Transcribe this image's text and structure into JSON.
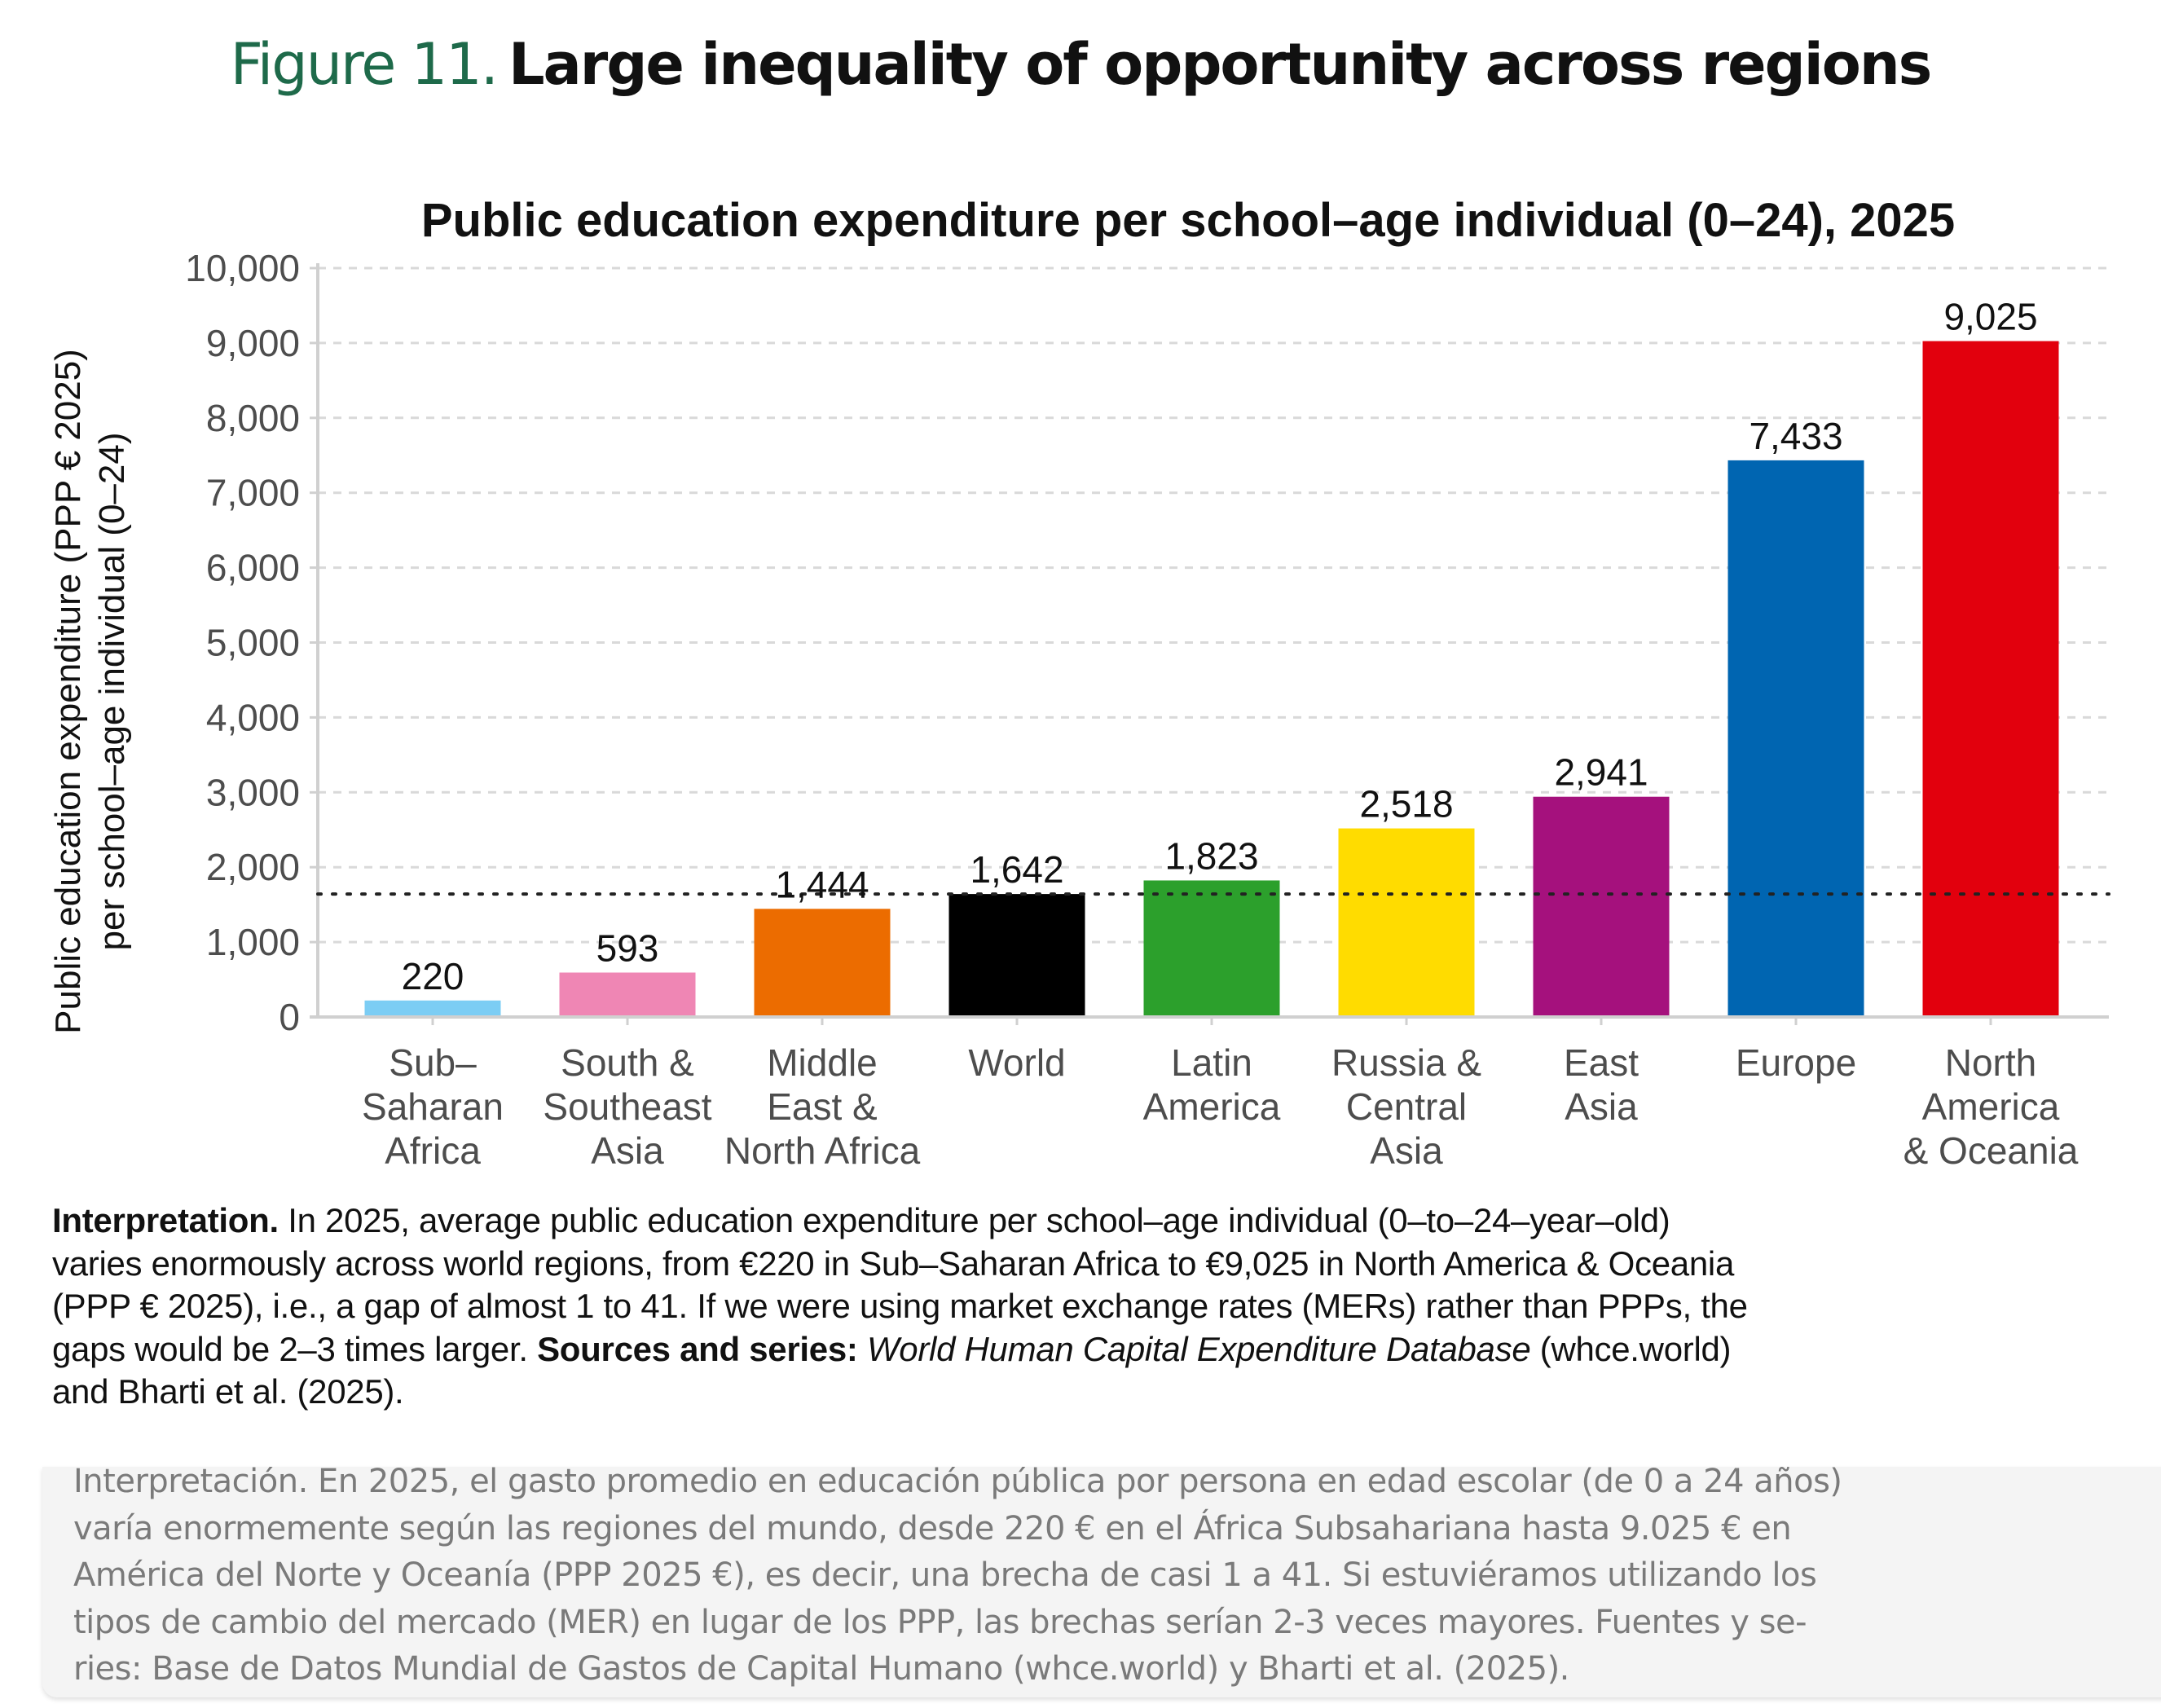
{
  "figure": {
    "number_label": "Figure 11.",
    "title": "Large inequality of opportunity across regions",
    "accent_color": "#1e6a4a"
  },
  "chart_data": {
    "type": "bar",
    "title": "Public education expenditure per school–age individual (0–24), 2025",
    "xlabel": "",
    "ylabel_lines": [
      "Public education expenditure (PPP € 2025)",
      "per school–age individual (0–24)"
    ],
    "ylim": [
      0,
      10000
    ],
    "yticks": [
      0,
      1000,
      2000,
      3000,
      4000,
      5000,
      6000,
      7000,
      8000,
      9000,
      10000
    ],
    "ytick_labels": [
      "0",
      "1,000",
      "2,000",
      "3,000",
      "4,000",
      "5,000",
      "6,000",
      "7,000",
      "8,000",
      "9,000",
      "10,000"
    ],
    "grid": "horizontal dashed",
    "reference_line": {
      "label": "World",
      "value": 1642,
      "style": "dotted"
    },
    "categories": [
      [
        "Sub–",
        "Saharan",
        "Africa"
      ],
      [
        "South &",
        "Southeast",
        "Asia"
      ],
      [
        "Middle",
        "East &",
        "North Africa"
      ],
      [
        "World"
      ],
      [
        "Latin",
        "America"
      ],
      [
        "Russia &",
        "Central",
        "Asia"
      ],
      [
        "East",
        "Asia"
      ],
      [
        "Europe"
      ],
      [
        "North",
        "America",
        "& Oceania"
      ]
    ],
    "values": [
      220,
      593,
      1444,
      1642,
      1823,
      2518,
      2941,
      7433,
      9025
    ],
    "value_labels": [
      "220",
      "593",
      "1,444",
      "1,642",
      "1,823",
      "2,518",
      "2,941",
      "7,433",
      "9,025"
    ],
    "colors": [
      "#7ccdf4",
      "#ef86b4",
      "#ec6c00",
      "#000000",
      "#2ca02c",
      "#ffdc00",
      "#a5117d",
      "#0065b1",
      "#e2000d"
    ]
  },
  "interpretation": {
    "lines": [
      [
        {
          "b": "Interpretation."
        },
        {
          "t": " In 2025, average public education expenditure per school–age individual (0–to–24–year–old)"
        }
      ],
      [
        {
          "t": "varies enormously across world regions, from €220 in Sub–Saharan Africa to €9,025 in North America & Oceania"
        }
      ],
      [
        {
          "t": "(PPP € 2025), i.e., a gap of almost 1 to 41. If we were using market exchange rates (MERs) rather than PPPs, the"
        }
      ],
      [
        {
          "t": "gaps would be 2–3 times larger. "
        },
        {
          "b": "Sources and series: "
        },
        {
          "t": " "
        },
        {
          "i": "World Human Capital Expenditure Database"
        },
        {
          "t": " (whce.world)"
        }
      ],
      [
        {
          "t": "and Bharti et al. (2025)."
        }
      ]
    ]
  },
  "translation_overlay": {
    "lines": [
      "Interpretación. En 2025, el gasto promedio en educación pública por persona en edad escolar (de 0 a 24 años)",
      "varía enormemente según las regiones del mundo, desde 220 € en el África Subsahariana hasta 9.025 € en",
      "América del Norte y Oceanía (PPP 2025 €), es decir, una brecha de casi 1 a 41. Si estuviéramos utilizando los",
      "tipos de cambio del mercado (MER) en lugar de los PPP, las brechas serían 2-3 veces mayores. Fuentes y se-",
      "ries: Base de Datos Mundial de Gastos de Capital Humano (whce.world) y Bharti et al. (2025)."
    ]
  }
}
